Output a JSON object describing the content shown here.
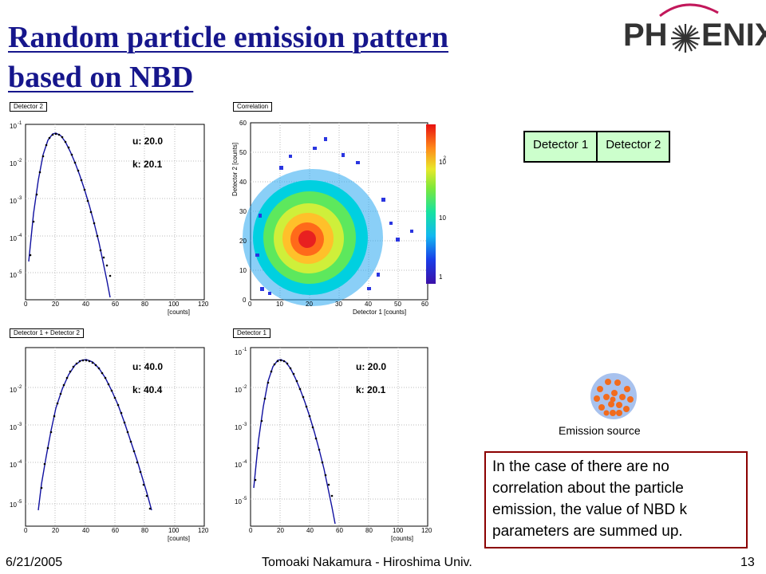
{
  "title_line1": "Random particle emission pattern",
  "title_line2": "based on NBD",
  "logo": {
    "text_left": "PH",
    "text_right": "ENIX"
  },
  "panels": {
    "top_left": {
      "tab": "Detector 2",
      "ticks_y": [
        "10",
        "10",
        "10",
        "10",
        "10"
      ],
      "exps_y": [
        "-1",
        "-2",
        "-3",
        "-4",
        "-5"
      ],
      "ticks_x": [
        "0",
        "20",
        "40",
        "60",
        "80",
        "100",
        "120"
      ],
      "xunit": "[counts]",
      "u": "u:  20.0",
      "k": "k:  20.1"
    },
    "top_right": {
      "tab": "Correlation",
      "ylabel": "Detector 2 [counts]",
      "xlabel": "Detector 1 [counts]",
      "ticks_x": [
        "0",
        "10",
        "20",
        "30",
        "40",
        "50",
        "60"
      ],
      "ticks_y": [
        "0",
        "10",
        "20",
        "30",
        "40",
        "50",
        "60"
      ],
      "colorbar": [
        "1",
        "10",
        "10"
      ],
      "colorbar_exp": "2"
    },
    "bottom_left": {
      "tab": "Detector 1 + Detector 2",
      "ticks_y": [
        "10",
        "10",
        "10",
        "10"
      ],
      "exps_y": [
        "-2",
        "-3",
        "-4",
        "-5"
      ],
      "ticks_x": [
        "0",
        "20",
        "40",
        "60",
        "80",
        "100",
        "120"
      ],
      "xunit": "[counts]",
      "u": "u:  40.0",
      "k": "k:  40.4"
    },
    "bottom_right": {
      "tab": "Detector 1",
      "ticks_y": [
        "10",
        "10",
        "10",
        "10",
        "10"
      ],
      "exps_y": [
        "-1",
        "-2",
        "-3",
        "-4",
        "-5"
      ],
      "ticks_x": [
        "0",
        "20",
        "40",
        "60",
        "80",
        "100",
        "120"
      ],
      "xunit": "[counts]",
      "u": "u:  20.0",
      "k": "k:  20.1"
    }
  },
  "detectors": [
    "Detector 1",
    "Detector 2"
  ],
  "emission_source_label": "Emission source",
  "note": "In the case of there are no correlation about the particle emission, the value of NBD k parameters are summed up.",
  "footer": {
    "date": "6/21/2005",
    "author": "Tomoaki Nakamura - Hiroshima Univ.",
    "page": "13"
  },
  "colors": {
    "title": "#16168c",
    "fit_line": "#1010a0",
    "detector_box": "#ccffcc",
    "note_border": "#8b0000",
    "logo": "#333333",
    "source_dots": "#f26b1d",
    "source_disc": "#a8c2ee"
  }
}
